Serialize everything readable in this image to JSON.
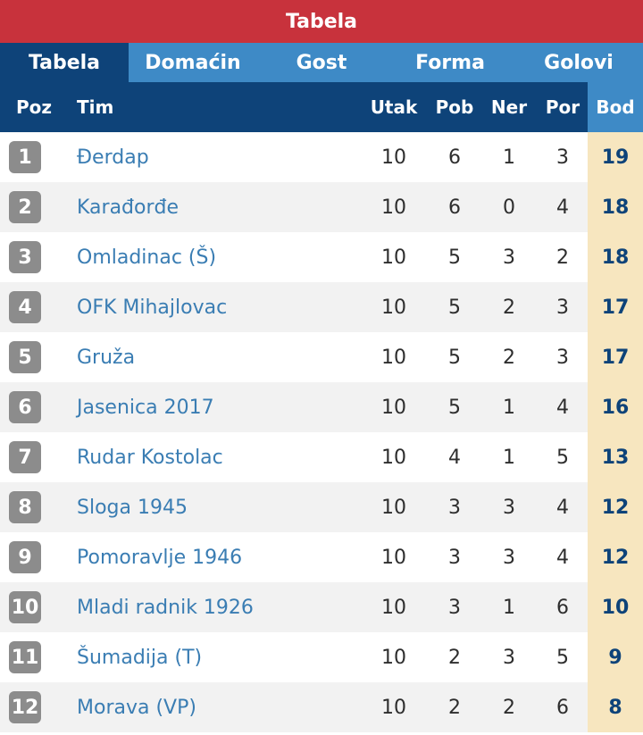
{
  "title": "Tabela",
  "tabs": [
    "Tabela",
    "Domaćin",
    "Gost",
    "Forma",
    "Golovi"
  ],
  "columns": {
    "poz": "Poz",
    "tim": "Tim",
    "utak": "Utak",
    "pob": "Pob",
    "ner": "Ner",
    "por": "Por",
    "bod": "Bod"
  },
  "rows": [
    {
      "poz": "1",
      "tim": "Đerdap",
      "utak": "10",
      "pob": "6",
      "ner": "1",
      "por": "3",
      "bod": "19"
    },
    {
      "poz": "2",
      "tim": "Karađorđe",
      "utak": "10",
      "pob": "6",
      "ner": "0",
      "por": "4",
      "bod": "18"
    },
    {
      "poz": "3",
      "tim": "Omladinac (Š)",
      "utak": "10",
      "pob": "5",
      "ner": "3",
      "por": "2",
      "bod": "18"
    },
    {
      "poz": "4",
      "tim": "OFK Mihajlovac",
      "utak": "10",
      "pob": "5",
      "ner": "2",
      "por": "3",
      "bod": "17"
    },
    {
      "poz": "5",
      "tim": "Gruža",
      "utak": "10",
      "pob": "5",
      "ner": "2",
      "por": "3",
      "bod": "17"
    },
    {
      "poz": "6",
      "tim": "Jasenica 2017",
      "utak": "10",
      "pob": "5",
      "ner": "1",
      "por": "4",
      "bod": "16"
    },
    {
      "poz": "7",
      "tim": "Rudar Kostolac",
      "utak": "10",
      "pob": "4",
      "ner": "1",
      "por": "5",
      "bod": "13"
    },
    {
      "poz": "8",
      "tim": "Sloga 1945",
      "utak": "10",
      "pob": "3",
      "ner": "3",
      "por": "4",
      "bod": "12"
    },
    {
      "poz": "9",
      "tim": "Pomoravlje 1946",
      "utak": "10",
      "pob": "3",
      "ner": "3",
      "por": "4",
      "bod": "12"
    },
    {
      "poz": "10",
      "tim": "Mladi radnik 1926",
      "utak": "10",
      "pob": "3",
      "ner": "1",
      "por": "6",
      "bod": "10"
    },
    {
      "poz": "11",
      "tim": "Šumadija (T)",
      "utak": "10",
      "pob": "2",
      "ner": "3",
      "por": "5",
      "bod": "9"
    },
    {
      "poz": "12",
      "tim": "Morava (VP)",
      "utak": "10",
      "pob": "2",
      "ner": "2",
      "por": "6",
      "bod": "8"
    }
  ],
  "colors": {
    "title_bg": "#c8323c",
    "header_bg": "#0e4379",
    "tab_bg": "#3e8ac6",
    "points_bg": "#f7e6bf",
    "badge_bg": "#8c8c8c",
    "link": "#3a7db3"
  }
}
